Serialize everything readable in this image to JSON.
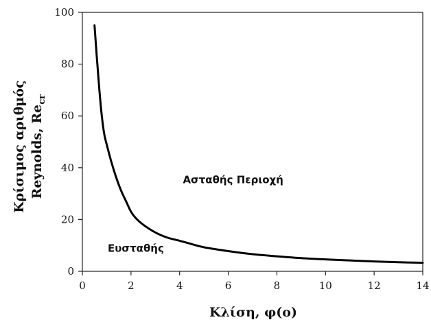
{
  "chart_data": {
    "type": "line",
    "title": "",
    "xlabel": "Κλίση, φ(ο)",
    "ylabel_line1": "Κρίσιμος αριθμός",
    "ylabel_line2": "Reynolds, Re",
    "ylabel_subscript": "cr",
    "xlim": [
      0,
      14
    ],
    "ylim": [
      0,
      100
    ],
    "x_ticks": [
      0,
      2,
      4,
      6,
      8,
      10,
      12,
      14
    ],
    "y_ticks": [
      0,
      20,
      40,
      60,
      80,
      100
    ],
    "grid": false,
    "legend": "none",
    "series": [
      {
        "x": [
          0.5,
          0.6,
          0.7,
          0.8,
          0.9,
          1.0,
          1.2,
          1.4,
          1.6,
          1.8,
          2.0,
          2.2,
          2.5,
          3.0,
          3.5,
          4.0,
          4.5,
          5.0,
          6.0,
          7.0,
          8.0,
          9.0,
          10.0,
          11.0,
          12.0,
          13.0,
          14.0
        ],
        "y": [
          95,
          82,
          70,
          60,
          53,
          49,
          42,
          36,
          31,
          27,
          23,
          20.5,
          18,
          15,
          13,
          11.8,
          10.5,
          9.3,
          7.8,
          6.6,
          5.8,
          5.1,
          4.6,
          4.2,
          3.8,
          3.5,
          3.3
        ]
      }
    ],
    "annotations": [
      {
        "text": "Ασταθής Περιοχή",
        "x": 6.2,
        "y": 34
      },
      {
        "text": "Ευσταθής",
        "x": 2.2,
        "y": 7.5
      }
    ]
  }
}
